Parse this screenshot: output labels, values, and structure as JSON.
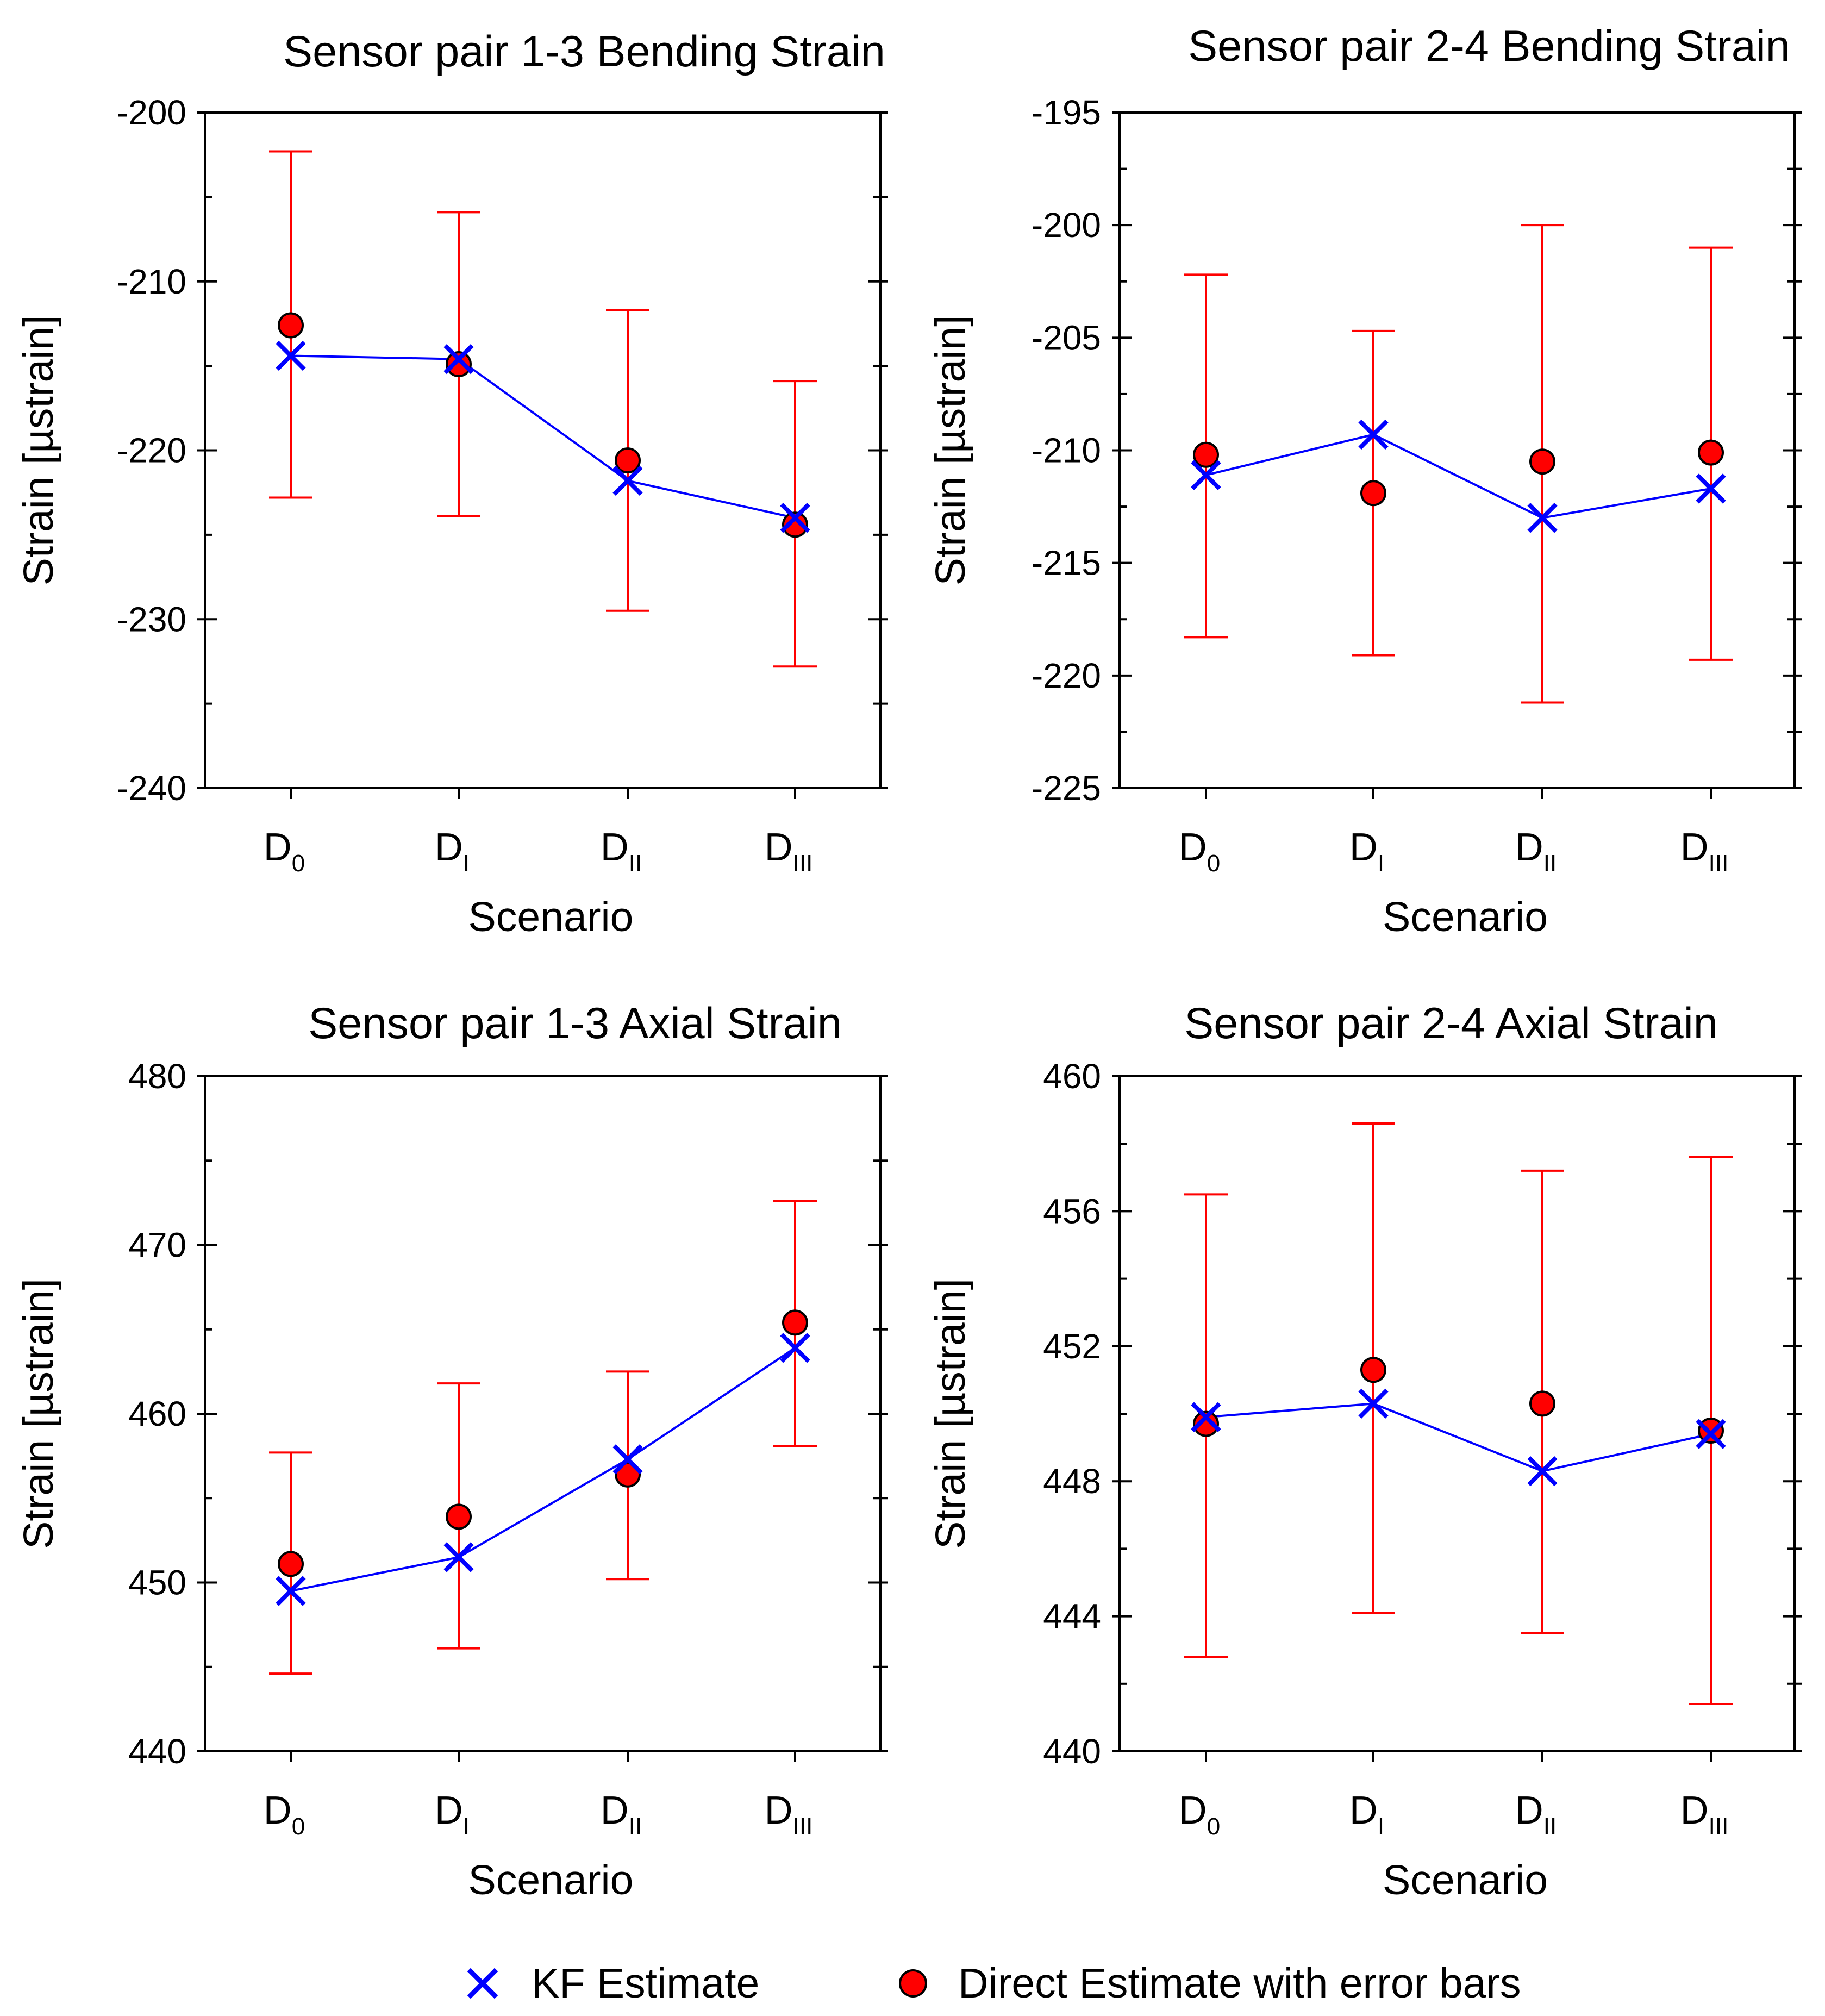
{
  "colors": {
    "kf": "#0000ff",
    "direct": "#ff0000",
    "axis": "#000000",
    "background": "#ffffff"
  },
  "legend": {
    "kf_label": "KF Estimate",
    "kf_icon": "blue-x-marker-icon",
    "direct_label": "Direct Estimate with error bars",
    "direct_icon": "red-circle-marker-icon"
  },
  "chart_data": [
    {
      "type": "scatter",
      "title": "Sensor pair 1-3 Bending Strain",
      "xlabel": "Scenario",
      "ylabel": "Strain [µstrain]",
      "categories": [
        {
          "base": "D",
          "sub": "0"
        },
        {
          "base": "D",
          "sub": "I"
        },
        {
          "base": "D",
          "sub": "II"
        },
        {
          "base": "D",
          "sub": "III"
        }
      ],
      "ylim": [
        -240,
        -200
      ],
      "yticks": [
        -200,
        -210,
        -220,
        -230,
        -240
      ],
      "series": [
        {
          "name": "KF Estimate",
          "values": [
            -214.4,
            -214.6,
            -221.8,
            -224.0
          ]
        },
        {
          "name": "Direct Estimate with error bars",
          "values": [
            -212.6,
            -214.9,
            -220.6,
            -224.4
          ],
          "err_low": [
            -222.8,
            -223.9,
            -229.5,
            -232.8
          ],
          "err_high": [
            -202.3,
            -205.9,
            -211.7,
            -215.9
          ]
        }
      ]
    },
    {
      "type": "scatter",
      "title": "Sensor pair 2-4 Bending Strain",
      "xlabel": "Scenario",
      "ylabel": "Strain [µstrain]",
      "categories": [
        {
          "base": "D",
          "sub": "0"
        },
        {
          "base": "D",
          "sub": "I"
        },
        {
          "base": "D",
          "sub": "II"
        },
        {
          "base": "D",
          "sub": "III"
        }
      ],
      "ylim": [
        -225,
        -195
      ],
      "yticks": [
        -195,
        -200,
        -205,
        -210,
        -215,
        -220,
        -225
      ],
      "series": [
        {
          "name": "KF Estimate",
          "values": [
            -211.1,
            -209.3,
            -213.0,
            -211.7
          ]
        },
        {
          "name": "Direct Estimate with error bars",
          "values": [
            -210.2,
            -211.9,
            -210.5,
            -210.1
          ],
          "err_low": [
            -218.3,
            -219.1,
            -221.2,
            -219.3
          ],
          "err_high": [
            -202.2,
            -204.7,
            -200.0,
            -201.0
          ]
        }
      ]
    },
    {
      "type": "scatter",
      "title": "Sensor pair 1-3 Axial Strain",
      "xlabel": "Scenario",
      "ylabel": "Strain [µstrain]",
      "categories": [
        {
          "base": "D",
          "sub": "0"
        },
        {
          "base": "D",
          "sub": "I"
        },
        {
          "base": "D",
          "sub": "II"
        },
        {
          "base": "D",
          "sub": "III"
        }
      ],
      "ylim": [
        440,
        480
      ],
      "yticks": [
        480,
        470,
        460,
        450,
        440
      ],
      "series": [
        {
          "name": "KF Estimate",
          "values": [
            449.5,
            451.5,
            457.3,
            463.9
          ]
        },
        {
          "name": "Direct Estimate with error bars",
          "values": [
            451.1,
            453.9,
            456.4,
            465.4
          ],
          "err_low": [
            444.6,
            446.1,
            450.2,
            458.1
          ],
          "err_high": [
            457.7,
            461.8,
            462.5,
            472.6
          ]
        }
      ]
    },
    {
      "type": "scatter",
      "title": "Sensor pair 2-4 Axial Strain",
      "xlabel": "Scenario",
      "ylabel": "Strain [µstrain]",
      "categories": [
        {
          "base": "D",
          "sub": "0"
        },
        {
          "base": "D",
          "sub": "I"
        },
        {
          "base": "D",
          "sub": "II"
        },
        {
          "base": "D",
          "sub": "III"
        }
      ],
      "ylim": [
        440,
        460
      ],
      "yticks": [
        460,
        456,
        452,
        448,
        444,
        440
      ],
      "series": [
        {
          "name": "KF Estimate",
          "values": [
            449.9,
            450.3,
            448.3,
            449.4
          ]
        },
        {
          "name": "Direct Estimate with error bars",
          "values": [
            449.7,
            451.3,
            450.3,
            449.5
          ],
          "err_low": [
            442.8,
            444.1,
            443.5,
            441.4
          ],
          "err_high": [
            456.5,
            458.6,
            457.2,
            457.6
          ]
        }
      ]
    }
  ]
}
